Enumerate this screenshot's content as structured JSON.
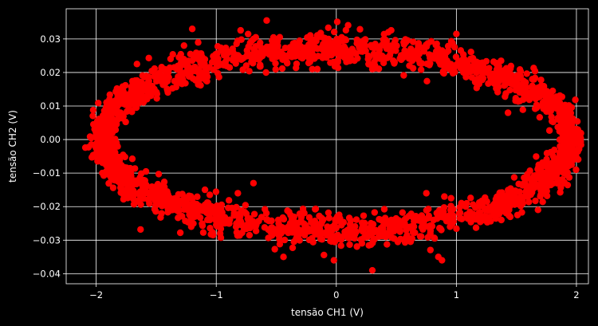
{
  "chart_data": {
    "type": "scatter",
    "title": "",
    "xlabel": "tensão CH1 (V)",
    "ylabel": "tensão CH2 (V)",
    "xlim": [
      -2.25,
      2.1
    ],
    "ylim": [
      -0.043,
      0.039
    ],
    "xticks": [
      -2,
      -1,
      0,
      1,
      2
    ],
    "xtick_labels": [
      "−2",
      "−1",
      "0",
      "1",
      "2"
    ],
    "yticks": [
      -0.04,
      -0.03,
      -0.02,
      -0.01,
      0.0,
      0.01,
      0.02,
      0.03
    ],
    "ytick_labels": [
      "−0.04",
      "−0.03",
      "−0.02",
      "−0.01",
      "0.00",
      "0.01",
      "0.02",
      "0.03"
    ],
    "grid": true,
    "background": "#000000",
    "foreground": "#ffffff",
    "marker_color": "#ff0000",
    "series": [
      {
        "shape": "ellipse",
        "center_x": 0.0,
        "center_y": 0.0,
        "amplitude_x": 1.95,
        "amplitude_y": 0.027,
        "noise_x": 0.05,
        "noise_y": 0.0025,
        "point_count": 2400,
        "outliers": [
          [
            0.3,
            -0.039
          ],
          [
            -0.02,
            -0.036
          ],
          [
            0.88,
            -0.036
          ],
          [
            0.85,
            -0.035
          ],
          [
            -0.44,
            -0.035
          ],
          [
            -0.82,
            -0.016
          ],
          [
            -0.69,
            -0.013
          ],
          [
            0.75,
            -0.016
          ],
          [
            0.9,
            -0.017
          ],
          [
            -1.2,
            0.033
          ],
          [
            -0.58,
            0.0355
          ],
          [
            1.0,
            0.0315
          ],
          [
            0.3,
            0.021
          ],
          [
            -0.2,
            0.021
          ],
          [
            1.1,
            0.022
          ]
        ]
      }
    ]
  }
}
